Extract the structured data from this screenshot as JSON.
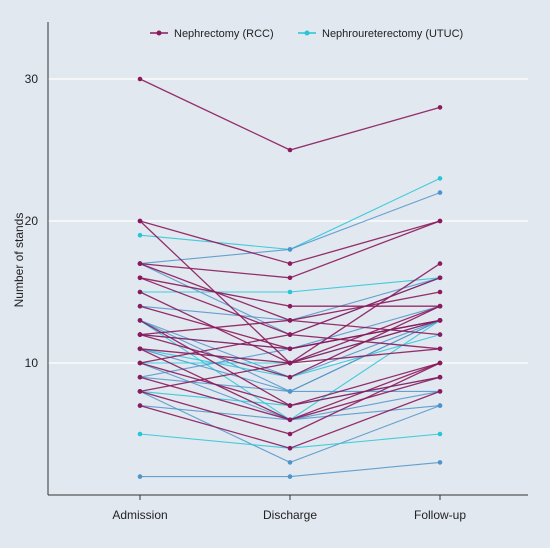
{
  "chart_data": {
    "type": "line",
    "title": "",
    "xlabel": "",
    "ylabel": "Number of stands",
    "categories": [
      "Admission",
      "Discharge",
      "Follow-up"
    ],
    "yticks": [
      10,
      20,
      30
    ],
    "ylim": [
      1,
      30
    ],
    "grid": true,
    "legend_position": "top-center",
    "colors": {
      "panel_bg": "#e1e8f0",
      "grid": "#ffffff",
      "rcc": "#8b1a5c",
      "utuc": "#26c6d6",
      "utuc_blend": "#4f93c8",
      "axis": "#333333"
    },
    "series": [
      {
        "name": "Nephrectomy (RCC)",
        "color_key": "rcc",
        "patients": [
          [
            30,
            25,
            28
          ],
          [
            20,
            17,
            20
          ],
          [
            20,
            10,
            17
          ],
          [
            17,
            16,
            20
          ],
          [
            17,
            13,
            15
          ],
          [
            16,
            14,
            14
          ],
          [
            16,
            12,
            11
          ],
          [
            15,
            10,
            13
          ],
          [
            14,
            11,
            13
          ],
          [
            13,
            7,
            10
          ],
          [
            12,
            13,
            12
          ],
          [
            12,
            11,
            13
          ],
          [
            12,
            9,
            14
          ],
          [
            11,
            6,
            10
          ],
          [
            11,
            10,
            11
          ],
          [
            10,
            7,
            9
          ],
          [
            10,
            12,
            16
          ],
          [
            9,
            6,
            9
          ],
          [
            8,
            5,
            10
          ],
          [
            8,
            10,
            14
          ],
          [
            7,
            4,
            8
          ]
        ]
      },
      {
        "name": "Nephroureterectomy (UTUC)",
        "color_key": "utuc",
        "patients": [
          [
            19,
            18,
            23
          ],
          [
            17,
            18,
            22
          ],
          [
            17,
            12,
            16
          ],
          [
            15,
            15,
            16
          ],
          [
            14,
            13,
            16
          ],
          [
            13,
            9,
            13
          ],
          [
            13,
            6,
            13
          ],
          [
            13,
            8,
            13
          ],
          [
            12,
            11,
            14
          ],
          [
            11,
            9,
            12
          ],
          [
            11,
            8,
            13
          ],
          [
            10,
            6,
            8
          ],
          [
            10,
            10,
            13
          ],
          [
            9,
            11,
            13
          ],
          [
            9,
            8,
            8
          ],
          [
            8,
            7,
            9
          ],
          [
            8,
            3,
            7
          ],
          [
            7,
            6,
            7
          ],
          [
            5,
            4,
            5
          ],
          [
            2,
            2,
            3
          ]
        ]
      }
    ]
  }
}
